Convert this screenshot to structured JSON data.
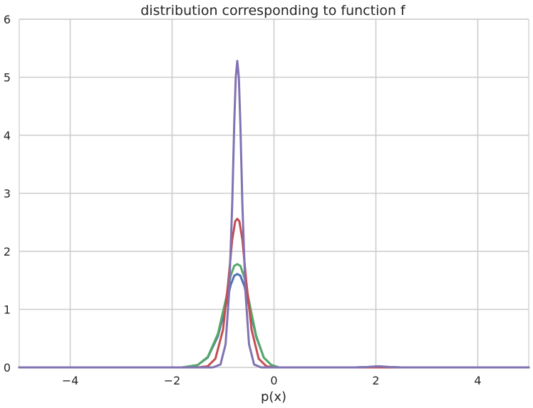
{
  "chart_data": {
    "type": "line",
    "title": "distribution corresponding to function f",
    "xlabel": "p(x)",
    "ylabel": "",
    "xlim": [
      -5,
      5
    ],
    "ylim": [
      0,
      6
    ],
    "xticks": [
      -4,
      -2,
      0,
      2,
      4
    ],
    "xtick_labels": [
      "−4",
      "−2",
      "0",
      "2",
      "4"
    ],
    "yticks": [
      0,
      1,
      2,
      3,
      4,
      5,
      6
    ],
    "ytick_labels": [
      "0",
      "1",
      "2",
      "3",
      "4",
      "5",
      "6"
    ],
    "grid": true,
    "series": [
      {
        "color": "#4c72b0",
        "points": [
          [
            -5,
            0
          ],
          [
            -1.8,
            0
          ],
          [
            -1.5,
            0.04
          ],
          [
            -1.3,
            0.17
          ],
          [
            -1.1,
            0.54
          ],
          [
            -0.95,
            1.05
          ],
          [
            -0.85,
            1.42
          ],
          [
            -0.78,
            1.58
          ],
          [
            -0.72,
            1.61
          ],
          [
            -0.66,
            1.58
          ],
          [
            -0.58,
            1.4
          ],
          [
            -0.48,
            1.02
          ],
          [
            -0.35,
            0.53
          ],
          [
            -0.2,
            0.17
          ],
          [
            -0.05,
            0.04
          ],
          [
            0.1,
            0
          ],
          [
            1.6,
            0
          ],
          [
            1.85,
            0.008
          ],
          [
            2.05,
            0.02
          ],
          [
            2.25,
            0.008
          ],
          [
            2.5,
            0
          ],
          [
            5,
            0
          ]
        ]
      },
      {
        "color": "#55a868",
        "points": [
          [
            -5,
            0
          ],
          [
            -1.8,
            0
          ],
          [
            -1.5,
            0.04
          ],
          [
            -1.3,
            0.18
          ],
          [
            -1.1,
            0.58
          ],
          [
            -0.95,
            1.15
          ],
          [
            -0.85,
            1.58
          ],
          [
            -0.78,
            1.75
          ],
          [
            -0.72,
            1.78
          ],
          [
            -0.66,
            1.75
          ],
          [
            -0.58,
            1.55
          ],
          [
            -0.48,
            1.1
          ],
          [
            -0.35,
            0.55
          ],
          [
            -0.2,
            0.17
          ],
          [
            -0.05,
            0.04
          ],
          [
            0.1,
            0
          ],
          [
            1.6,
            0
          ],
          [
            1.85,
            0.006
          ],
          [
            2.05,
            0.015
          ],
          [
            2.25,
            0.006
          ],
          [
            2.5,
            0
          ],
          [
            5,
            0
          ]
        ]
      },
      {
        "color": "#c44e52",
        "points": [
          [
            -5,
            0
          ],
          [
            -1.5,
            0
          ],
          [
            -1.3,
            0.02
          ],
          [
            -1.15,
            0.15
          ],
          [
            -1.0,
            0.65
          ],
          [
            -0.9,
            1.45
          ],
          [
            -0.82,
            2.2
          ],
          [
            -0.76,
            2.52
          ],
          [
            -0.72,
            2.56
          ],
          [
            -0.68,
            2.52
          ],
          [
            -0.62,
            2.2
          ],
          [
            -0.54,
            1.45
          ],
          [
            -0.44,
            0.65
          ],
          [
            -0.3,
            0.15
          ],
          [
            -0.15,
            0.02
          ],
          [
            0,
            0
          ],
          [
            5,
            0
          ]
        ]
      },
      {
        "color": "#8172b2",
        "points": [
          [
            -5,
            0
          ],
          [
            -1.2,
            0
          ],
          [
            -1.05,
            0.05
          ],
          [
            -0.95,
            0.4
          ],
          [
            -0.88,
            1.3
          ],
          [
            -0.82,
            2.8
          ],
          [
            -0.78,
            4.2
          ],
          [
            -0.75,
            5.0
          ],
          [
            -0.72,
            5.28
          ],
          [
            -0.69,
            5.0
          ],
          [
            -0.66,
            4.2
          ],
          [
            -0.62,
            2.8
          ],
          [
            -0.56,
            1.3
          ],
          [
            -0.49,
            0.4
          ],
          [
            -0.39,
            0.05
          ],
          [
            -0.25,
            0
          ],
          [
            1.6,
            0
          ],
          [
            1.85,
            0.007
          ],
          [
            2.05,
            0.018
          ],
          [
            2.25,
            0.007
          ],
          [
            2.5,
            0
          ],
          [
            5,
            0
          ]
        ]
      }
    ]
  }
}
